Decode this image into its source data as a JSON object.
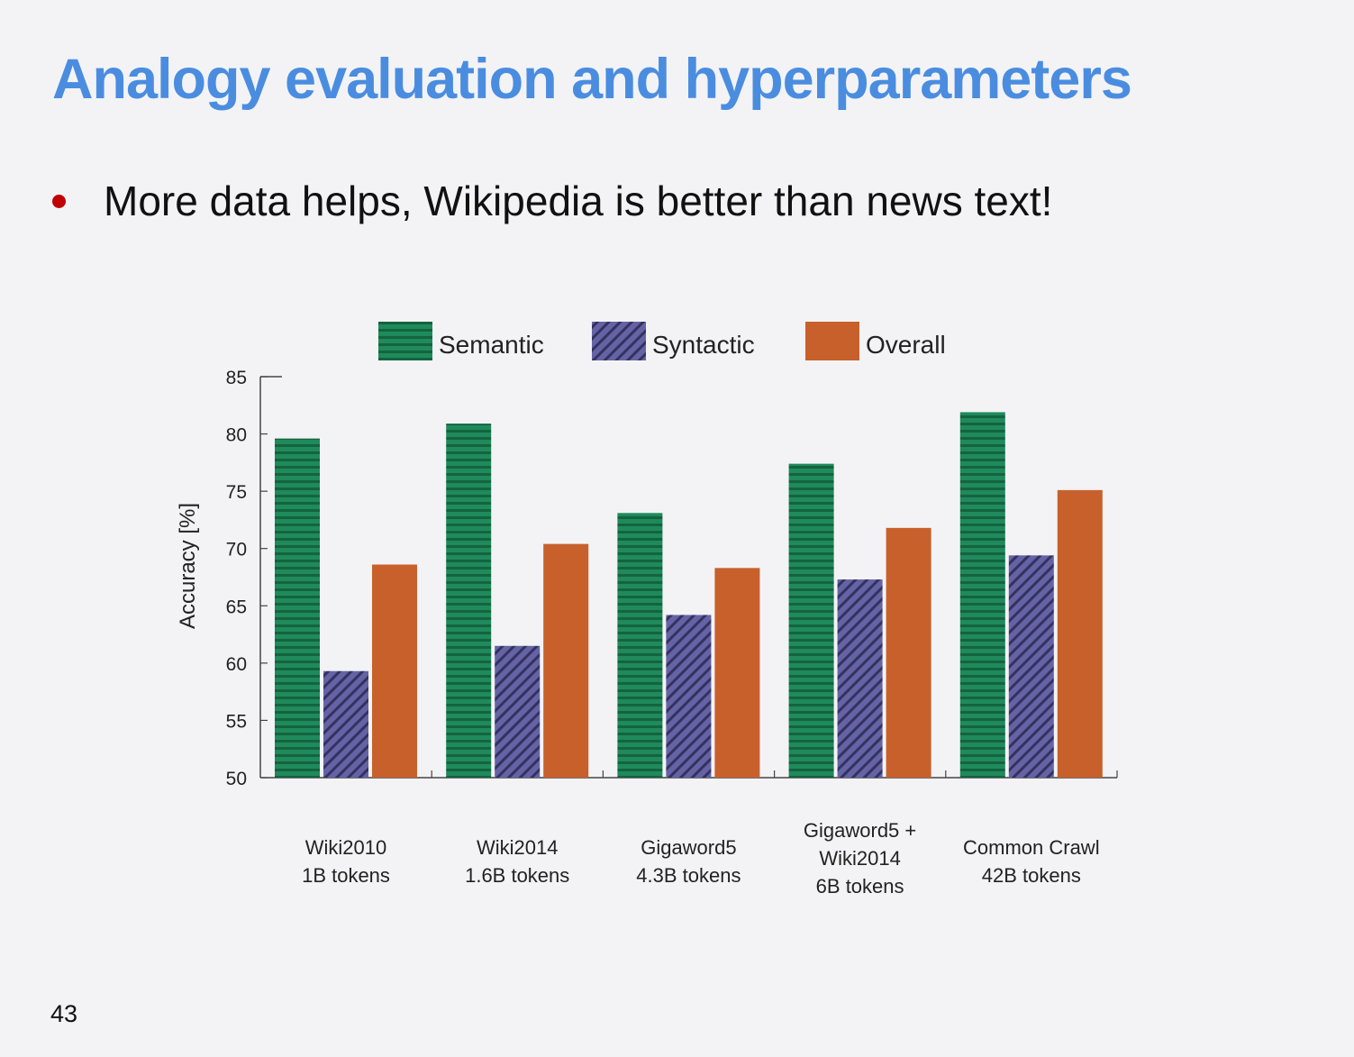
{
  "slide": {
    "title": "Analogy evaluation and hyperparameters",
    "bullet": "More data helps, Wikipedia is better than news text!",
    "page_number": "43"
  },
  "colors": {
    "title": "#4a8de0",
    "bullet": "#c00000",
    "semantic": "#1f8a5c",
    "syntactic": "#5d5a9a",
    "overall": "#c8602c"
  },
  "chart_data": {
    "type": "bar",
    "ylabel": "Accuracy [%]",
    "ylim": [
      50,
      85
    ],
    "yticks": [
      50,
      55,
      60,
      65,
      70,
      75,
      80,
      85
    ],
    "legend_position": "top",
    "categories": [
      [
        "Wiki2010",
        "1B tokens"
      ],
      [
        "Wiki2014",
        "1.6B tokens"
      ],
      [
        "Gigaword5",
        "4.3B tokens"
      ],
      [
        "Gigaword5 +",
        "Wiki2014",
        "6B tokens"
      ],
      [
        "Common Crawl",
        "42B tokens"
      ]
    ],
    "series": [
      {
        "name": "Semantic",
        "pattern": "horizontal-stripes",
        "values": [
          79.6,
          80.9,
          73.1,
          77.4,
          81.9
        ]
      },
      {
        "name": "Syntactic",
        "pattern": "diagonal-hatch",
        "values": [
          59.3,
          61.5,
          64.2,
          67.3,
          69.4
        ]
      },
      {
        "name": "Overall",
        "pattern": "solid",
        "values": [
          68.6,
          70.4,
          68.3,
          71.8,
          75.1
        ]
      }
    ]
  }
}
